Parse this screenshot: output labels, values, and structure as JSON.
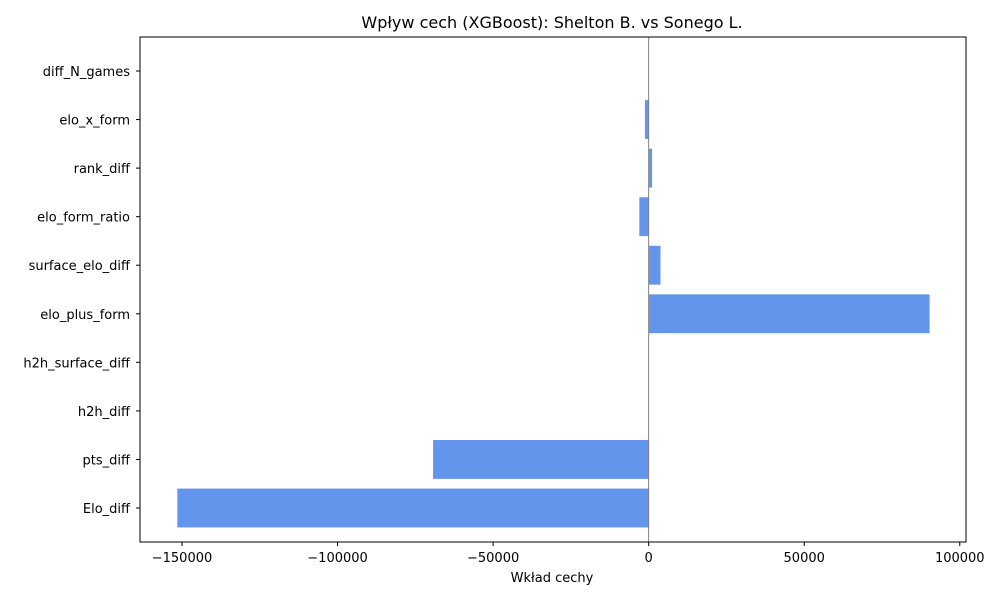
{
  "chart_data": {
    "type": "bar",
    "orientation": "horizontal",
    "title": "Wpływ cech (XGBoost): Shelton B. vs Sonego L.",
    "xlabel": "Wkład cechy",
    "ylabel": "",
    "categories": [
      "Elo_diff",
      "pts_diff",
      "h2h_diff",
      "h2h_surface_diff",
      "elo_plus_form",
      "surface_elo_diff",
      "elo_form_ratio",
      "rank_diff",
      "elo_x_form",
      "diff_N_games"
    ],
    "values": [
      -151500,
      -69300,
      0,
      0,
      90300,
      3800,
      -3000,
      1100,
      -1200,
      0
    ],
    "xlim": [
      -163500,
      102000
    ],
    "xticks": [
      -150000,
      -100000,
      -50000,
      0,
      50000,
      100000
    ],
    "xtick_labels": [
      "−150000",
      "−100000",
      "−50000",
      "0",
      "50000",
      "100000"
    ],
    "bar_color": "#6495ED",
    "zero_line_color": "#808080",
    "grid": false,
    "legend": "none"
  }
}
